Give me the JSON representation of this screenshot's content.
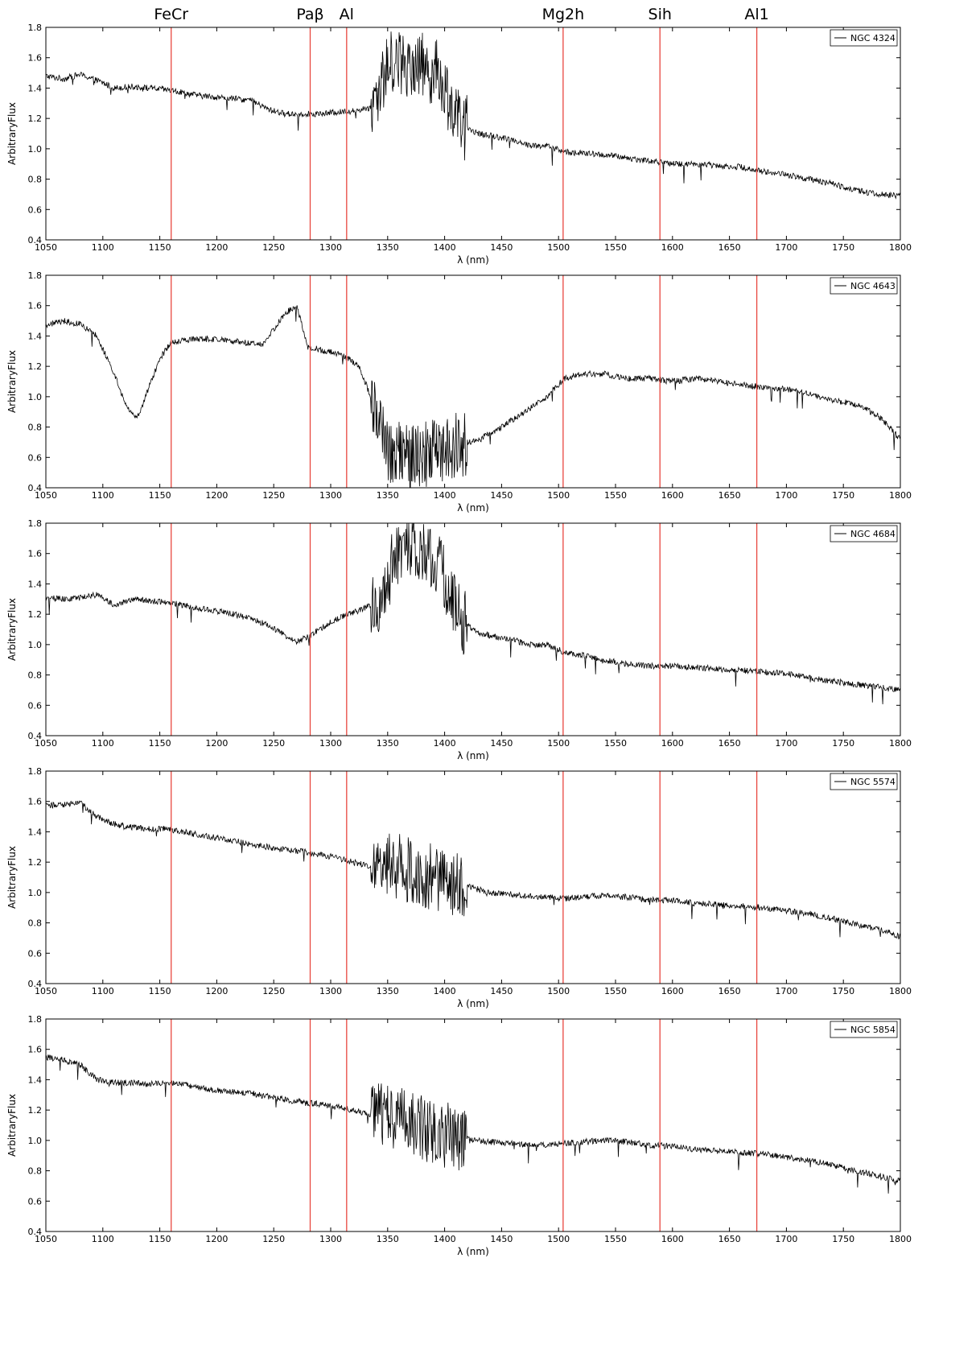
{
  "line_names": [
    "FeCr",
    "Paβ",
    "Al",
    "Mg2h",
    "Sih",
    "Al1"
  ],
  "colors": {
    "spectrum": "#000000",
    "marker": "#e8473f",
    "frame": "#000000"
  },
  "chart_data": [
    {
      "type": "line",
      "legend": "top-right",
      "grid": false,
      "xlabel": "λ (nm)",
      "ylabel": "ArbitraryFlux",
      "xlim": [
        1050,
        1800
      ],
      "ylim": [
        0.4,
        1.8
      ],
      "xticks": [
        "1050",
        "1100",
        "1150",
        "1200",
        "1250",
        "1300",
        "1350",
        "1400",
        "1450",
        "1500",
        "1550",
        "1600",
        "1650",
        "1700",
        "1750",
        "1800"
      ],
      "yticks": [
        "0.4",
        "0.6",
        "0.8",
        "1.0",
        "1.2",
        "1.4",
        "1.6",
        "1.8"
      ],
      "vlines": [
        1160,
        1282,
        1314,
        1504,
        1589,
        1674
      ],
      "series": [
        {
          "name": "NGC 4324",
          "x": [
            1050,
            1065,
            1080,
            1095,
            1110,
            1125,
            1140,
            1155,
            1170,
            1185,
            1200,
            1215,
            1230,
            1245,
            1260,
            1275,
            1290,
            1305,
            1320,
            1335,
            1345,
            1355,
            1365,
            1375,
            1385,
            1395,
            1405,
            1415,
            1430,
            1445,
            1460,
            1475,
            1490,
            1505,
            1520,
            1540,
            1560,
            1580,
            1600,
            1620,
            1640,
            1660,
            1680,
            1700,
            1720,
            1740,
            1760,
            1780,
            1800
          ],
          "y": [
            1.48,
            1.46,
            1.49,
            1.45,
            1.4,
            1.41,
            1.4,
            1.39,
            1.37,
            1.35,
            1.34,
            1.33,
            1.32,
            1.26,
            1.23,
            1.23,
            1.23,
            1.24,
            1.25,
            1.27,
            1.45,
            1.6,
            1.55,
            1.58,
            1.52,
            1.5,
            1.3,
            1.15,
            1.1,
            1.08,
            1.06,
            1.02,
            1.02,
            0.98,
            0.97,
            0.96,
            0.94,
            0.92,
            0.9,
            0.9,
            0.89,
            0.88,
            0.85,
            0.83,
            0.8,
            0.77,
            0.73,
            0.7,
            0.69
          ]
        }
      ]
    },
    {
      "type": "line",
      "legend": "top-right",
      "grid": false,
      "xlabel": "λ (nm)",
      "ylabel": "ArbitraryFlux",
      "xlim": [
        1050,
        1800
      ],
      "ylim": [
        0.4,
        1.8
      ],
      "xticks": [
        "1050",
        "1100",
        "1150",
        "1200",
        "1250",
        "1300",
        "1350",
        "1400",
        "1450",
        "1500",
        "1550",
        "1600",
        "1650",
        "1700",
        "1750",
        "1800"
      ],
      "yticks": [
        "0.4",
        "0.6",
        "0.8",
        "1.0",
        "1.2",
        "1.4",
        "1.6",
        "1.8"
      ],
      "vlines": [
        1160,
        1282,
        1314,
        1504,
        1589,
        1674
      ],
      "series": [
        {
          "name": "NGC 4643",
          "x": [
            1050,
            1065,
            1080,
            1095,
            1110,
            1120,
            1130,
            1140,
            1150,
            1160,
            1180,
            1200,
            1220,
            1240,
            1260,
            1270,
            1280,
            1295,
            1310,
            1325,
            1340,
            1350,
            1365,
            1380,
            1395,
            1410,
            1430,
            1450,
            1470,
            1490,
            1505,
            1520,
            1540,
            1560,
            1580,
            1600,
            1620,
            1640,
            1660,
            1680,
            1700,
            1720,
            1740,
            1760,
            1780,
            1800
          ],
          "y": [
            1.47,
            1.5,
            1.48,
            1.4,
            1.15,
            0.95,
            0.85,
            1.05,
            1.25,
            1.36,
            1.38,
            1.38,
            1.36,
            1.34,
            1.55,
            1.6,
            1.33,
            1.3,
            1.28,
            1.2,
            0.9,
            0.65,
            0.6,
            0.62,
            0.65,
            0.68,
            0.72,
            0.8,
            0.9,
            1.0,
            1.12,
            1.15,
            1.15,
            1.12,
            1.12,
            1.1,
            1.12,
            1.1,
            1.08,
            1.06,
            1.05,
            1.02,
            0.98,
            0.95,
            0.88,
            0.72
          ]
        }
      ]
    },
    {
      "type": "line",
      "legend": "top-right",
      "grid": false,
      "xlabel": "λ (nm)",
      "ylabel": "ArbitraryFlux",
      "xlim": [
        1050,
        1800
      ],
      "ylim": [
        0.4,
        1.8
      ],
      "xticks": [
        "1050",
        "1100",
        "1150",
        "1200",
        "1250",
        "1300",
        "1350",
        "1400",
        "1450",
        "1500",
        "1550",
        "1600",
        "1650",
        "1700",
        "1750",
        "1800"
      ],
      "yticks": [
        "0.4",
        "0.6",
        "0.8",
        "1.0",
        "1.2",
        "1.4",
        "1.6",
        "1.8"
      ],
      "vlines": [
        1160,
        1282,
        1314,
        1504,
        1589,
        1674
      ],
      "series": [
        {
          "name": "NGC 4684",
          "x": [
            1050,
            1065,
            1080,
            1095,
            1110,
            1125,
            1140,
            1155,
            1170,
            1185,
            1200,
            1215,
            1230,
            1245,
            1260,
            1270,
            1280,
            1290,
            1300,
            1315,
            1330,
            1345,
            1355,
            1365,
            1375,
            1385,
            1395,
            1405,
            1415,
            1430,
            1445,
            1460,
            1475,
            1490,
            1505,
            1520,
            1540,
            1560,
            1580,
            1600,
            1620,
            1640,
            1660,
            1680,
            1700,
            1720,
            1740,
            1760,
            1780,
            1800
          ],
          "y": [
            1.31,
            1.3,
            1.31,
            1.33,
            1.26,
            1.3,
            1.29,
            1.28,
            1.26,
            1.24,
            1.22,
            1.2,
            1.17,
            1.13,
            1.06,
            1.02,
            1.05,
            1.1,
            1.15,
            1.2,
            1.24,
            1.3,
            1.55,
            1.7,
            1.65,
            1.6,
            1.55,
            1.3,
            1.15,
            1.08,
            1.05,
            1.03,
            1.0,
            1.0,
            0.95,
            0.93,
            0.9,
            0.87,
            0.86,
            0.86,
            0.85,
            0.84,
            0.83,
            0.82,
            0.81,
            0.78,
            0.76,
            0.74,
            0.72,
            0.7
          ]
        }
      ]
    },
    {
      "type": "line",
      "legend": "top-right",
      "grid": false,
      "xlabel": "λ (nm)",
      "ylabel": "ArbitraryFlux",
      "xlim": [
        1050,
        1800
      ],
      "ylim": [
        0.4,
        1.8
      ],
      "xticks": [
        "1050",
        "1100",
        "1150",
        "1200",
        "1250",
        "1300",
        "1350",
        "1400",
        "1450",
        "1500",
        "1550",
        "1600",
        "1650",
        "1700",
        "1750",
        "1800"
      ],
      "yticks": [
        "0.4",
        "0.6",
        "0.8",
        "1.0",
        "1.2",
        "1.4",
        "1.6",
        "1.8"
      ],
      "vlines": [
        1160,
        1282,
        1314,
        1504,
        1589,
        1674
      ],
      "series": [
        {
          "name": "NGC 5574",
          "x": [
            1050,
            1065,
            1080,
            1095,
            1110,
            1125,
            1140,
            1155,
            1170,
            1185,
            1200,
            1215,
            1230,
            1245,
            1260,
            1275,
            1290,
            1305,
            1320,
            1335,
            1350,
            1365,
            1380,
            1395,
            1410,
            1425,
            1440,
            1455,
            1470,
            1490,
            1505,
            1520,
            1540,
            1560,
            1580,
            1600,
            1620,
            1640,
            1660,
            1680,
            1700,
            1720,
            1740,
            1760,
            1780,
            1800
          ],
          "y": [
            1.57,
            1.58,
            1.59,
            1.5,
            1.45,
            1.43,
            1.42,
            1.42,
            1.4,
            1.38,
            1.36,
            1.34,
            1.32,
            1.3,
            1.28,
            1.27,
            1.25,
            1.23,
            1.2,
            1.17,
            1.18,
            1.16,
            1.12,
            1.09,
            1.06,
            1.03,
            1.0,
            0.99,
            0.98,
            0.97,
            0.96,
            0.97,
            0.98,
            0.97,
            0.95,
            0.95,
            0.93,
            0.92,
            0.91,
            0.9,
            0.88,
            0.86,
            0.83,
            0.79,
            0.76,
            0.71
          ]
        }
      ]
    },
    {
      "type": "line",
      "legend": "top-right",
      "grid": false,
      "xlabel": "λ (nm)",
      "ylabel": "ArbitraryFlux",
      "xlim": [
        1050,
        1800
      ],
      "ylim": [
        0.4,
        1.8
      ],
      "xticks": [
        "1050",
        "1100",
        "1150",
        "1200",
        "1250",
        "1300",
        "1350",
        "1400",
        "1450",
        "1500",
        "1550",
        "1600",
        "1650",
        "1700",
        "1750",
        "1800"
      ],
      "yticks": [
        "0.4",
        "0.6",
        "0.8",
        "1.0",
        "1.2",
        "1.4",
        "1.6",
        "1.8"
      ],
      "vlines": [
        1160,
        1282,
        1314,
        1504,
        1589,
        1674
      ],
      "series": [
        {
          "name": "NGC 5854",
          "x": [
            1050,
            1065,
            1080,
            1095,
            1110,
            1125,
            1140,
            1155,
            1170,
            1185,
            1200,
            1215,
            1230,
            1245,
            1260,
            1275,
            1290,
            1305,
            1320,
            1335,
            1350,
            1365,
            1380,
            1395,
            1410,
            1425,
            1440,
            1455,
            1470,
            1490,
            1505,
            1520,
            1540,
            1560,
            1580,
            1600,
            1620,
            1640,
            1660,
            1680,
            1700,
            1720,
            1740,
            1760,
            1780,
            1800
          ],
          "y": [
            1.55,
            1.53,
            1.5,
            1.4,
            1.38,
            1.38,
            1.37,
            1.38,
            1.37,
            1.35,
            1.33,
            1.32,
            1.31,
            1.29,
            1.27,
            1.25,
            1.24,
            1.22,
            1.2,
            1.17,
            1.16,
            1.12,
            1.08,
            1.05,
            1.02,
            1.0,
            0.99,
            0.98,
            0.97,
            0.97,
            0.98,
            0.99,
            1.0,
            0.99,
            0.97,
            0.96,
            0.94,
            0.93,
            0.92,
            0.91,
            0.89,
            0.87,
            0.84,
            0.8,
            0.77,
            0.73
          ]
        }
      ]
    }
  ]
}
